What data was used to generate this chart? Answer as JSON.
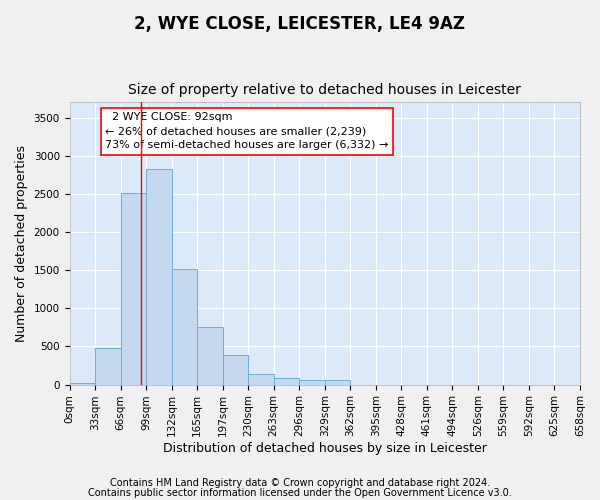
{
  "title": "2, WYE CLOSE, LEICESTER, LE4 9AZ",
  "subtitle": "Size of property relative to detached houses in Leicester",
  "xlabel": "Distribution of detached houses by size in Leicester",
  "ylabel": "Number of detached properties",
  "footnote1": "Contains HM Land Registry data © Crown copyright and database right 2024.",
  "footnote2": "Contains public sector information licensed under the Open Government Licence v3.0.",
  "bin_labels": [
    "0sqm",
    "33sqm",
    "66sqm",
    "99sqm",
    "132sqm",
    "165sqm",
    "197sqm",
    "230sqm",
    "263sqm",
    "296sqm",
    "329sqm",
    "362sqm",
    "395sqm",
    "428sqm",
    "461sqm",
    "494sqm",
    "526sqm",
    "559sqm",
    "592sqm",
    "625sqm",
    "658sqm"
  ],
  "bar_values": [
    20,
    480,
    2510,
    2820,
    1510,
    755,
    390,
    145,
    80,
    55,
    55,
    0,
    0,
    0,
    0,
    0,
    0,
    0,
    0,
    0
  ],
  "bar_color": "#c5d8f0",
  "bar_edgecolor": "#6baed6",
  "ylim": [
    0,
    3700
  ],
  "yticks": [
    0,
    500,
    1000,
    1500,
    2000,
    2500,
    3000,
    3500
  ],
  "property_size": 92,
  "property_label": "2 WYE CLOSE: 92sqm",
  "pct_smaller": "26% of detached houses are smaller (2,239)",
  "pct_larger": "73% of semi-detached houses are larger (6,332)",
  "vline_x": 92,
  "bin_width": 33,
  "background_color": "#dce9f8",
  "grid_color": "#ffffff",
  "title_fontsize": 12,
  "subtitle_fontsize": 10,
  "axis_label_fontsize": 9,
  "tick_fontsize": 7.5,
  "footnote_fontsize": 7,
  "annotation_fontsize": 8
}
